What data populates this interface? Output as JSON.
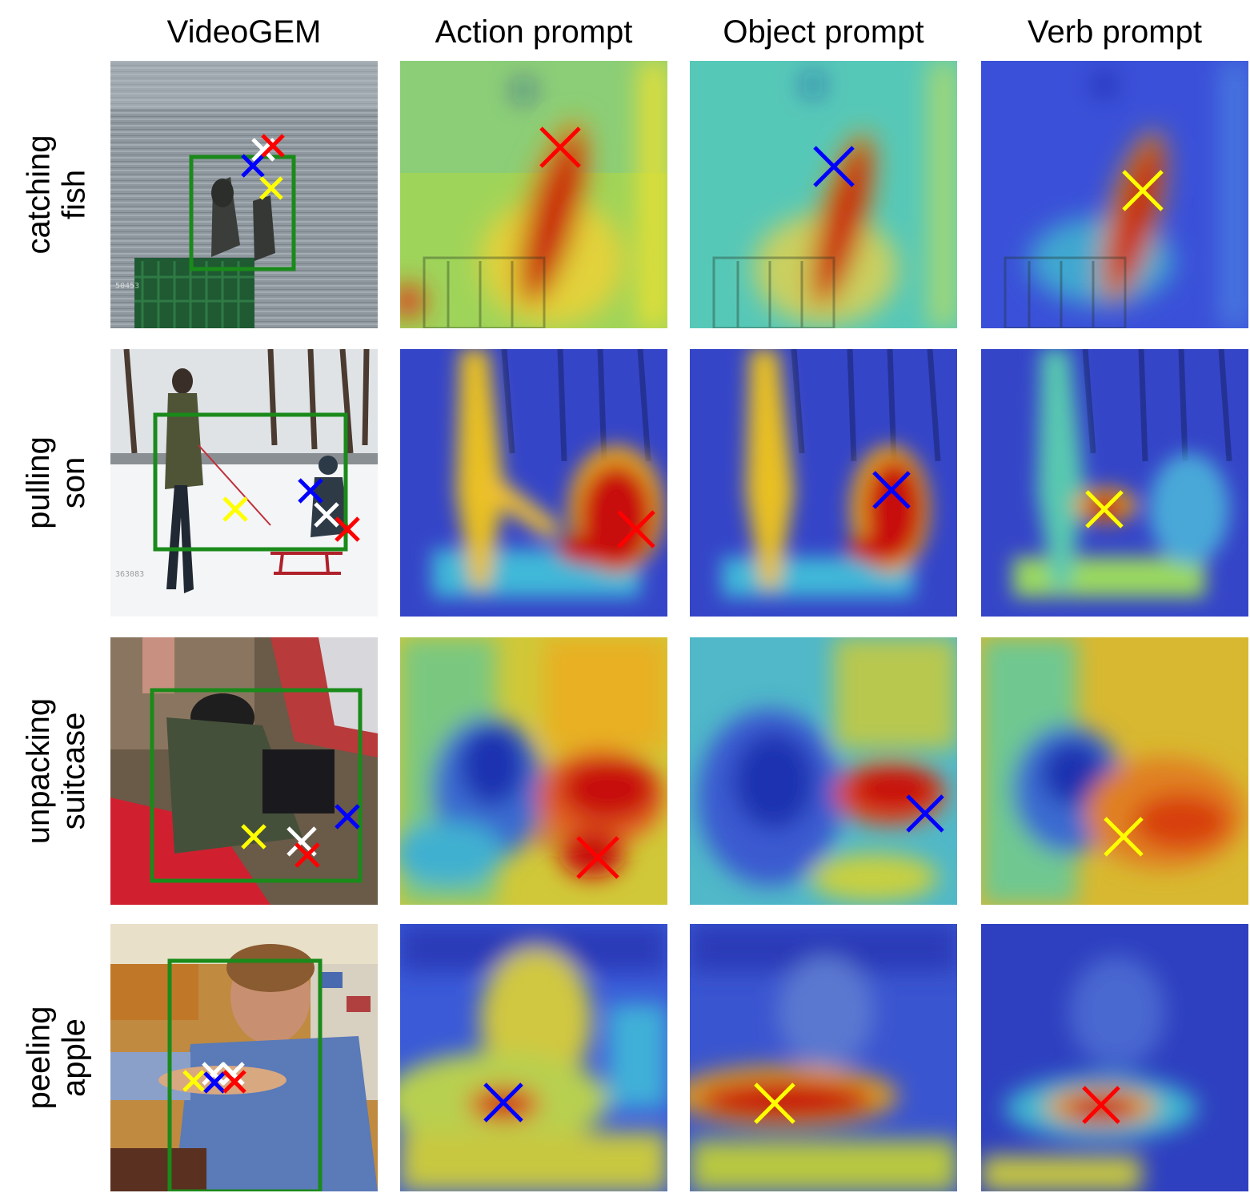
{
  "columns": [
    "VideoGEM",
    "Action prompt",
    "Object prompt",
    "Verb prompt"
  ],
  "rows": [
    {
      "line1": "catching",
      "line2": "fish"
    },
    {
      "line1": "pulling",
      "line2": "son"
    },
    {
      "line1": "unpacking",
      "line2": "suitcase"
    },
    {
      "line1": "peeling",
      "line2": "apple"
    }
  ],
  "photo_stamps": [
    "50453",
    "363083",
    "",
    ""
  ],
  "marker_colors": {
    "action": "#ff0000",
    "object": "#0000ff",
    "verb": "#ffff00",
    "videogem": "#ffffff",
    "box": "#1a8a1a"
  }
}
